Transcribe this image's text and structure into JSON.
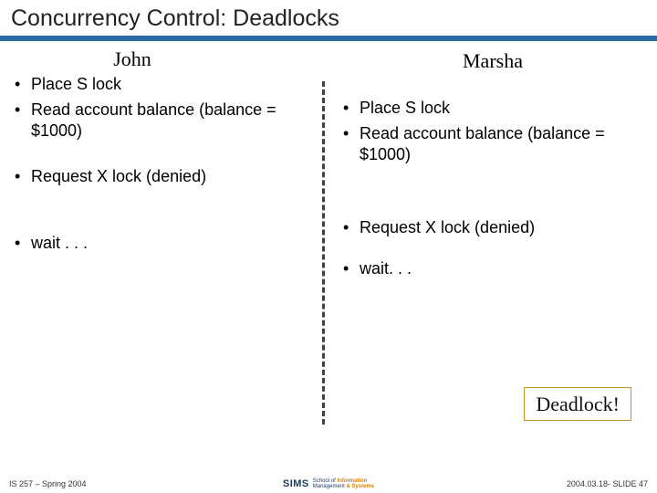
{
  "slide": {
    "title": "Concurrency Control: Deadlocks"
  },
  "left": {
    "header": "John",
    "items": [
      "Place S lock",
      "Read account balance (balance = $1000)",
      "Request X lock (denied)",
      "wait . . ."
    ]
  },
  "right": {
    "header": "Marsha",
    "items": [
      "Place S lock",
      "Read account balance (balance = $1000)",
      "Request X lock (denied)",
      "wait. . ."
    ]
  },
  "callout": "Deadlock!",
  "footer": {
    "left": "IS 257 – Spring 2004",
    "logo": "SIMS",
    "logo_sub1": "School of",
    "logo_sub2": "Information",
    "logo_sub3": "Management",
    "logo_sub4": "& Systems",
    "right": "2004.03.18- SLIDE 47"
  },
  "colors": {
    "title_bar": "#2a6aa8",
    "underline": "#2a6aa8",
    "text": "#000000",
    "divider": "#404040",
    "callout_border": "#c09820"
  }
}
